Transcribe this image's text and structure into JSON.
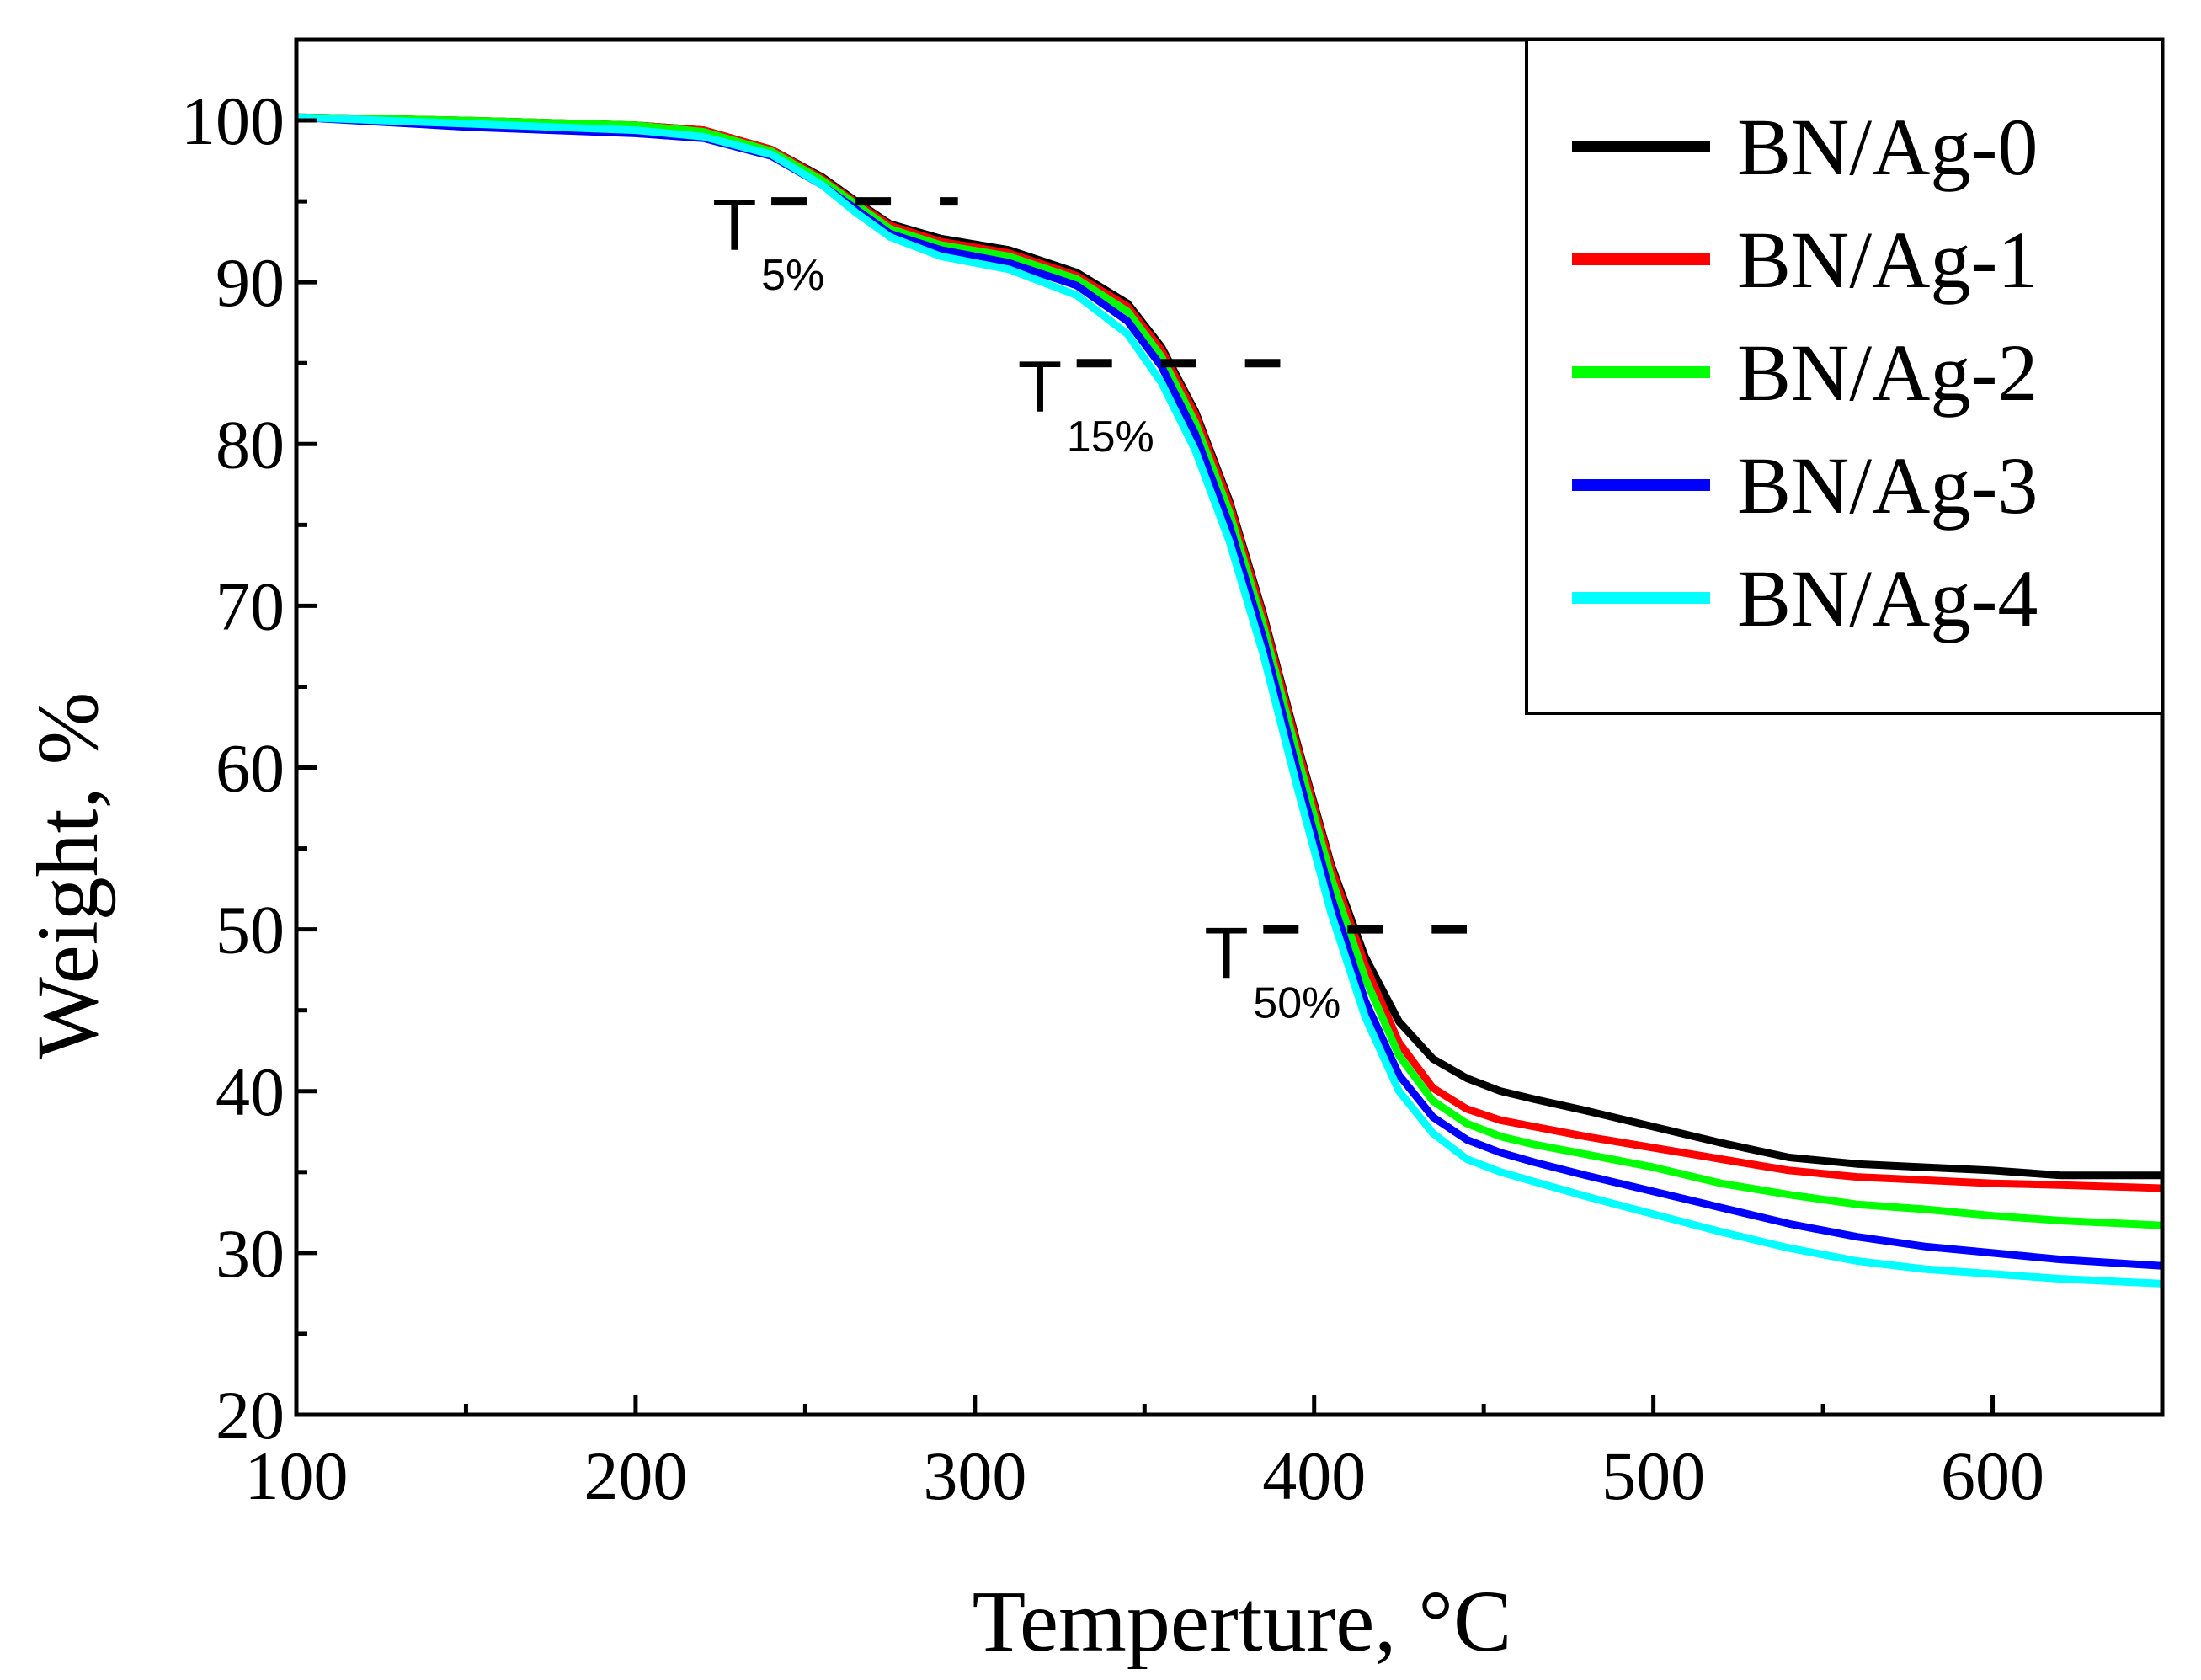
{
  "chart_data": {
    "type": "line",
    "xlabel": "Temperture,  °C",
    "ylabel": "Weight,  %",
    "xlim": [
      100,
      650
    ],
    "ylim": [
      20,
      105
    ],
    "xticks": [
      100,
      200,
      300,
      400,
      500,
      600
    ],
    "yticks": [
      20,
      30,
      40,
      50,
      60,
      70,
      80,
      90,
      100
    ],
    "legend_position": "top-right",
    "series": [
      {
        "name": "BN/Ag-0",
        "color": "#000000",
        "x": [
          100,
          150,
          200,
          220,
          240,
          255,
          265,
          275,
          290,
          310,
          330,
          345,
          355,
          365,
          375,
          385,
          395,
          405,
          415,
          425,
          435,
          445,
          455,
          465,
          480,
          500,
          520,
          540,
          560,
          580,
          600,
          620,
          650
        ],
        "y": [
          100.2,
          100,
          99.7,
          99.4,
          98.2,
          96.5,
          95.0,
          93.6,
          92.7,
          92.0,
          90.6,
          88.7,
          86.0,
          82.0,
          76.5,
          69.5,
          61.5,
          54.0,
          48.3,
          44.3,
          42.0,
          40.8,
          40.0,
          39.5,
          38.8,
          37.8,
          36.8,
          35.9,
          35.5,
          35.3,
          35.1,
          34.8,
          34.8
        ]
      },
      {
        "name": "BN/Ag-1",
        "color": "#ff0000",
        "x": [
          100,
          150,
          200,
          220,
          240,
          255,
          265,
          275,
          290,
          310,
          330,
          345,
          355,
          365,
          375,
          385,
          395,
          405,
          415,
          425,
          435,
          445,
          455,
          465,
          480,
          500,
          520,
          540,
          560,
          580,
          600,
          620,
          650
        ],
        "y": [
          100.2,
          100,
          99.7,
          99.4,
          98.2,
          96.4,
          94.9,
          93.5,
          92.5,
          91.8,
          90.4,
          88.5,
          85.8,
          81.8,
          76.3,
          69.3,
          61.3,
          53.8,
          47.8,
          43.0,
          40.2,
          38.9,
          38.2,
          37.8,
          37.2,
          36.5,
          35.8,
          35.1,
          34.7,
          34.5,
          34.3,
          34.2,
          34.0
        ]
      },
      {
        "name": "BN/Ag-2",
        "color": "#00ff00",
        "x": [
          100,
          150,
          200,
          220,
          240,
          255,
          265,
          275,
          290,
          310,
          330,
          345,
          355,
          365,
          375,
          385,
          395,
          405,
          415,
          425,
          435,
          445,
          455,
          465,
          480,
          500,
          520,
          540,
          560,
          580,
          600,
          620,
          650
        ],
        "y": [
          100.2,
          100,
          99.7,
          99.3,
          98.1,
          96.3,
          94.8,
          93.3,
          92.3,
          91.6,
          90.2,
          88.2,
          85.4,
          81.3,
          75.8,
          68.8,
          60.8,
          53.2,
          47.0,
          42.2,
          39.4,
          38.0,
          37.2,
          36.7,
          36.1,
          35.3,
          34.3,
          33.6,
          33.0,
          32.7,
          32.3,
          32.0,
          31.7
        ]
      },
      {
        "name": "BN/Ag-3",
        "color": "#0000ff",
        "x": [
          100,
          150,
          200,
          220,
          240,
          255,
          265,
          275,
          290,
          310,
          330,
          345,
          355,
          365,
          375,
          385,
          395,
          405,
          415,
          425,
          435,
          445,
          455,
          465,
          480,
          500,
          520,
          540,
          560,
          580,
          600,
          620,
          650
        ],
        "y": [
          100.2,
          99.6,
          99.2,
          98.9,
          97.8,
          96.0,
          94.5,
          93.0,
          92.0,
          91.2,
          89.8,
          87.6,
          84.8,
          80.6,
          75.0,
          68.0,
          59.8,
          52.0,
          45.6,
          41.0,
          38.4,
          37.0,
          36.2,
          35.6,
          34.8,
          33.8,
          32.8,
          31.8,
          31.0,
          30.4,
          30.0,
          29.6,
          29.2
        ]
      },
      {
        "name": "BN/Ag-4",
        "color": "#00ffff",
        "x": [
          100,
          150,
          200,
          220,
          240,
          255,
          265,
          275,
          290,
          310,
          330,
          345,
          355,
          365,
          375,
          385,
          395,
          405,
          415,
          425,
          435,
          445,
          455,
          465,
          480,
          500,
          520,
          540,
          560,
          580,
          600,
          620,
          650
        ],
        "y": [
          100.2,
          99.8,
          99.4,
          99.0,
          97.9,
          96.0,
          94.3,
          92.8,
          91.6,
          90.8,
          89.2,
          86.8,
          83.8,
          79.6,
          74.0,
          67.0,
          58.8,
          51.0,
          44.6,
          40.0,
          37.4,
          35.8,
          35.0,
          34.4,
          33.5,
          32.4,
          31.3,
          30.3,
          29.5,
          29.0,
          28.7,
          28.4,
          28.1
        ]
      }
    ],
    "annotations": [
      {
        "main": "T",
        "sub": "5%",
        "y_value": 95,
        "dash_x": [
          240,
          295
        ]
      },
      {
        "main": "T",
        "sub": "15%",
        "y_value": 85,
        "dash_x": [
          330,
          390
        ]
      },
      {
        "main": "T",
        "sub": "50%",
        "y_value": 50,
        "dash_x": [
          385,
          445
        ]
      }
    ]
  }
}
